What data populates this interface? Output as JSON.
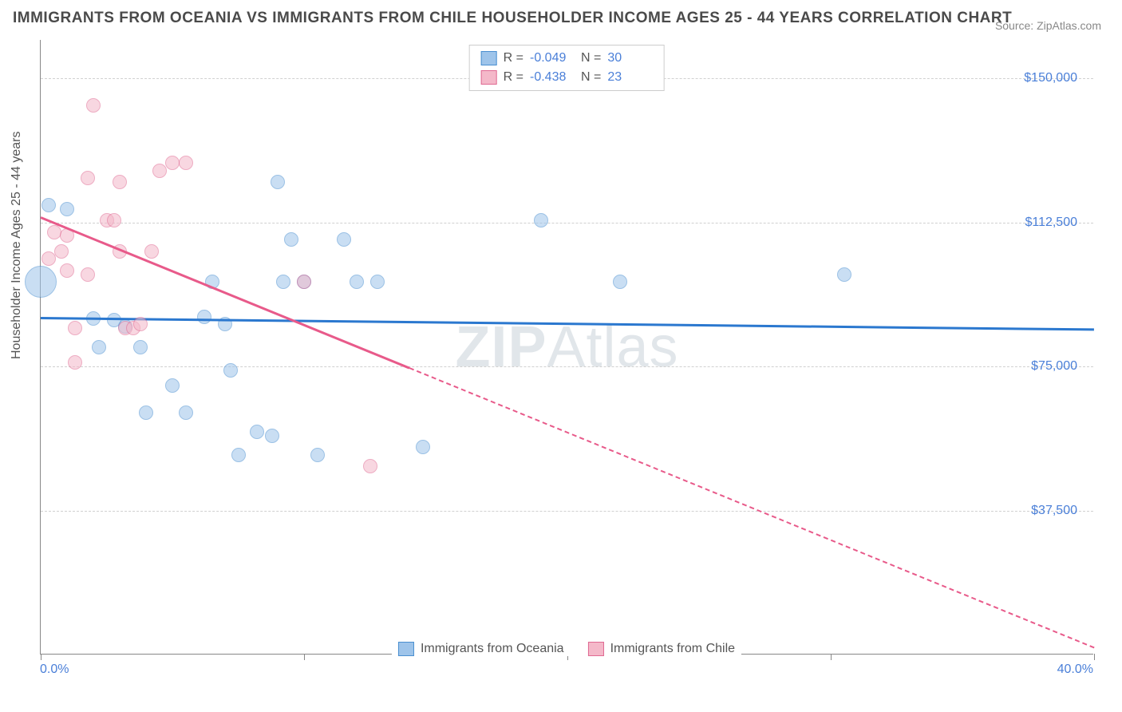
{
  "title": "IMMIGRANTS FROM OCEANIA VS IMMIGRANTS FROM CHILE HOUSEHOLDER INCOME AGES 25 - 44 YEARS CORRELATION CHART",
  "source": "Source: ZipAtlas.com",
  "watermark_a": "ZIP",
  "watermark_b": "Atlas",
  "chart": {
    "type": "scatter",
    "background_color": "#ffffff",
    "grid_color": "#d0d0d0",
    "axis_color": "#888888",
    "tick_label_color": "#4a7fd8",
    "text_color": "#555555",
    "xlim_pct": [
      0,
      40
    ],
    "ylim_usd": [
      0,
      160000
    ],
    "y_gridlines_usd": [
      37500,
      75000,
      112500,
      150000
    ],
    "y_tick_labels": [
      "$37,500",
      "$75,000",
      "$112,500",
      "$150,000"
    ],
    "x_ticks_pct": [
      0,
      10,
      20,
      30,
      40
    ],
    "x_min_label": "0.0%",
    "x_max_label": "40.0%",
    "ylabel": "Householder Income Ages 25 - 44 years",
    "series": [
      {
        "name": "Immigrants from Oceania",
        "fill_color": "#9ec4ea",
        "stroke_color": "#4a8fd0",
        "fill_opacity": 0.55,
        "trend_color": "#2b78cf",
        "R": "-0.049",
        "N": "30",
        "trend_y_at_x0": 88000,
        "trend_y_at_x40": 85000,
        "points": [
          {
            "x": 0.3,
            "y": 117000,
            "r": 9
          },
          {
            "x": 0.0,
            "y": 97000,
            "r": 20
          },
          {
            "x": 1.0,
            "y": 116000,
            "r": 9
          },
          {
            "x": 2.0,
            "y": 87500,
            "r": 9
          },
          {
            "x": 2.8,
            "y": 87000,
            "r": 9
          },
          {
            "x": 2.2,
            "y": 80000,
            "r": 9
          },
          {
            "x": 3.2,
            "y": 85500,
            "r": 9
          },
          {
            "x": 3.8,
            "y": 80000,
            "r": 9
          },
          {
            "x": 4.0,
            "y": 63000,
            "r": 9
          },
          {
            "x": 5.0,
            "y": 70000,
            "r": 9
          },
          {
            "x": 5.5,
            "y": 63000,
            "r": 9
          },
          {
            "x": 6.2,
            "y": 88000,
            "r": 9
          },
          {
            "x": 6.5,
            "y": 97000,
            "r": 9
          },
          {
            "x": 7.0,
            "y": 86000,
            "r": 9
          },
          {
            "x": 7.2,
            "y": 74000,
            "r": 9
          },
          {
            "x": 7.5,
            "y": 52000,
            "r": 9
          },
          {
            "x": 8.2,
            "y": 58000,
            "r": 9
          },
          {
            "x": 8.8,
            "y": 57000,
            "r": 9
          },
          {
            "x": 9.0,
            "y": 123000,
            "r": 9
          },
          {
            "x": 9.2,
            "y": 97000,
            "r": 9
          },
          {
            "x": 9.5,
            "y": 108000,
            "r": 9
          },
          {
            "x": 10.0,
            "y": 97000,
            "r": 9
          },
          {
            "x": 10.5,
            "y": 52000,
            "r": 9
          },
          {
            "x": 11.5,
            "y": 108000,
            "r": 9
          },
          {
            "x": 12.0,
            "y": 97000,
            "r": 9
          },
          {
            "x": 12.8,
            "y": 97000,
            "r": 9
          },
          {
            "x": 14.5,
            "y": 54000,
            "r": 9
          },
          {
            "x": 19.0,
            "y": 113000,
            "r": 9
          },
          {
            "x": 22.0,
            "y": 97000,
            "r": 9
          },
          {
            "x": 30.5,
            "y": 99000,
            "r": 9
          }
        ]
      },
      {
        "name": "Immigrants from Chile",
        "fill_color": "#f4b8c9",
        "stroke_color": "#e06992",
        "fill_opacity": 0.55,
        "trend_color": "#e85a8a",
        "R": "-0.438",
        "N": "23",
        "trend_y_at_x0": 114000,
        "trend_y_at_x40": 2000,
        "trend_solid_until_x": 14,
        "points": [
          {
            "x": 0.3,
            "y": 103000,
            "r": 9
          },
          {
            "x": 0.5,
            "y": 110000,
            "r": 9
          },
          {
            "x": 0.8,
            "y": 105000,
            "r": 9
          },
          {
            "x": 1.0,
            "y": 100000,
            "r": 9
          },
          {
            "x": 1.0,
            "y": 109000,
            "r": 9
          },
          {
            "x": 1.3,
            "y": 85000,
            "r": 9
          },
          {
            "x": 1.3,
            "y": 76000,
            "r": 9
          },
          {
            "x": 1.8,
            "y": 124000,
            "r": 9
          },
          {
            "x": 1.8,
            "y": 99000,
            "r": 9
          },
          {
            "x": 2.0,
            "y": 143000,
            "r": 9
          },
          {
            "x": 2.5,
            "y": 113000,
            "r": 9
          },
          {
            "x": 2.8,
            "y": 113000,
            "r": 9
          },
          {
            "x": 3.0,
            "y": 105000,
            "r": 9
          },
          {
            "x": 3.0,
            "y": 123000,
            "r": 9
          },
          {
            "x": 3.2,
            "y": 85000,
            "r": 9
          },
          {
            "x": 3.5,
            "y": 85000,
            "r": 9
          },
          {
            "x": 3.8,
            "y": 86000,
            "r": 9
          },
          {
            "x": 4.2,
            "y": 105000,
            "r": 9
          },
          {
            "x": 4.5,
            "y": 126000,
            "r": 9
          },
          {
            "x": 5.0,
            "y": 128000,
            "r": 9
          },
          {
            "x": 5.5,
            "y": 128000,
            "r": 9
          },
          {
            "x": 10.0,
            "y": 97000,
            "r": 9
          },
          {
            "x": 12.5,
            "y": 49000,
            "r": 9
          }
        ]
      }
    ]
  },
  "legend_labels": {
    "R_prefix": "R =",
    "N_prefix": "N ="
  }
}
